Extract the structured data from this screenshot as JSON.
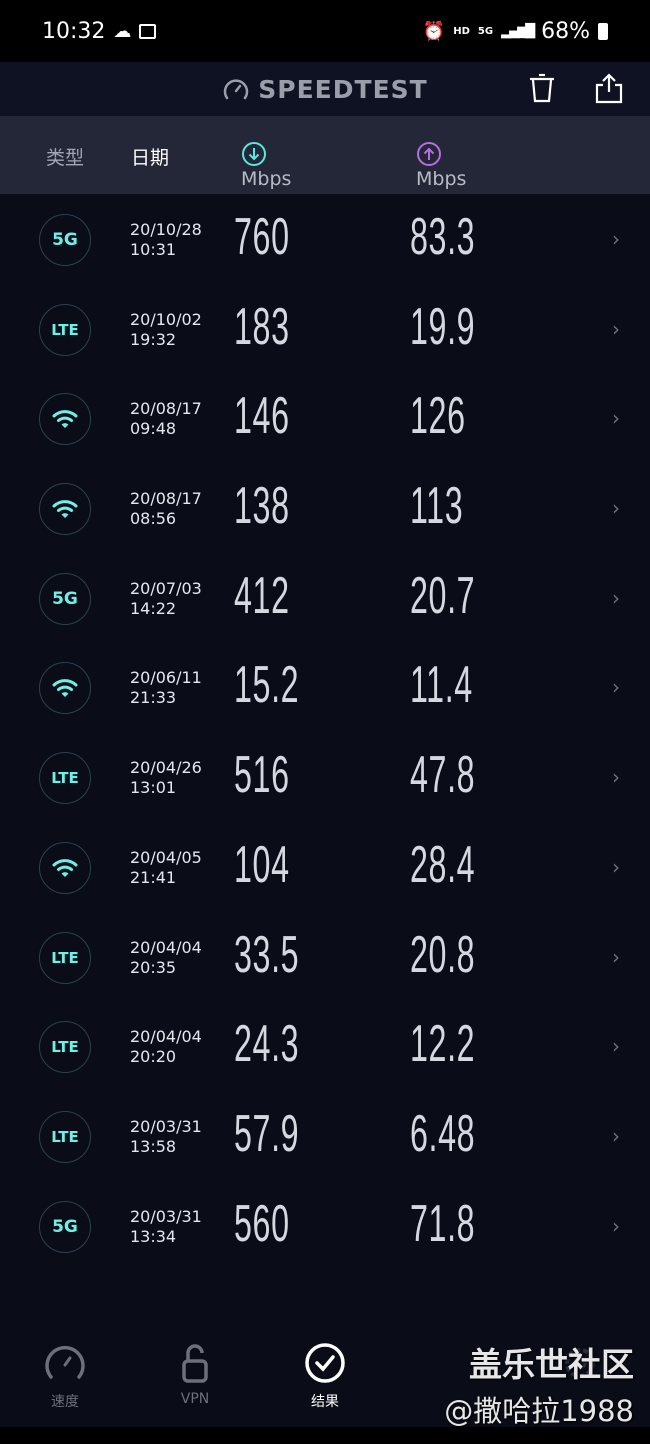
{
  "status_bar": {
    "time": "10:32",
    "network": "HD",
    "signal": "5G",
    "battery": "68%"
  },
  "app": {
    "title": "SPEEDTEST"
  },
  "columns": {
    "type": "类型",
    "date": "日期",
    "download": "Mbps",
    "upload": "Mbps"
  },
  "colors": {
    "accent_download": "#5ee6dc",
    "accent_upload": "#b66ee0",
    "background": "#0a0c18"
  },
  "results": [
    {
      "type": "5G",
      "date": "20/10/28",
      "time": "10:31",
      "download": "760",
      "upload": "83.3"
    },
    {
      "type": "LTE",
      "date": "20/10/02",
      "time": "19:32",
      "download": "183",
      "upload": "19.9"
    },
    {
      "type": "wifi",
      "date": "20/08/17",
      "time": "09:48",
      "download": "146",
      "upload": "126"
    },
    {
      "type": "wifi",
      "date": "20/08/17",
      "time": "08:56",
      "download": "138",
      "upload": "113"
    },
    {
      "type": "5G",
      "date": "20/07/03",
      "time": "14:22",
      "download": "412",
      "upload": "20.7"
    },
    {
      "type": "wifi",
      "date": "20/06/11",
      "time": "21:33",
      "download": "15.2",
      "upload": "11.4"
    },
    {
      "type": "LTE",
      "date": "20/04/26",
      "time": "13:01",
      "download": "516",
      "upload": "47.8"
    },
    {
      "type": "wifi",
      "date": "20/04/05",
      "time": "21:41",
      "download": "104",
      "upload": "28.4"
    },
    {
      "type": "LTE",
      "date": "20/04/04",
      "time": "20:35",
      "download": "33.5",
      "upload": "20.8"
    },
    {
      "type": "LTE",
      "date": "20/04/04",
      "time": "20:20",
      "download": "24.3",
      "upload": "12.2"
    },
    {
      "type": "LTE",
      "date": "20/03/31",
      "time": "13:58",
      "download": "57.9",
      "upload": "6.48"
    },
    {
      "type": "5G",
      "date": "20/03/31",
      "time": "13:34",
      "download": "560",
      "upload": "71.8"
    }
  ],
  "nav": {
    "speed": "速度",
    "vpn": "VPN",
    "results": "结果",
    "active": "results"
  },
  "watermark": {
    "line1": "盖乐世社区",
    "line2": "@撒哈拉1988"
  }
}
